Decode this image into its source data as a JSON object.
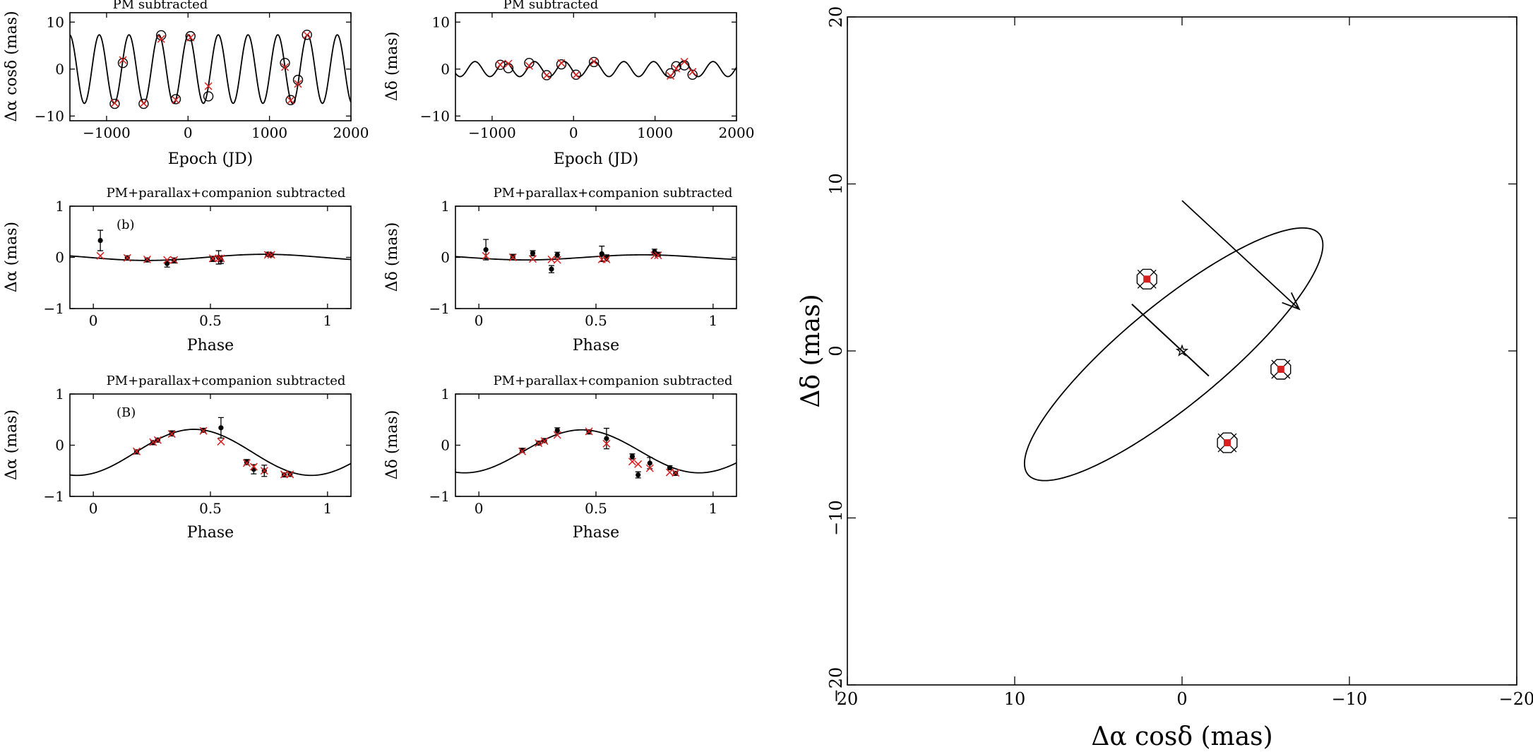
{
  "colors": {
    "axis": "#000000",
    "model_mark": "#d62020",
    "data": "#000000",
    "bg": "#ffffff"
  },
  "chart_data": [
    {
      "id": "p1",
      "type": "line",
      "title": "PM subtracted",
      "xlabel": "Epoch (JD)",
      "ylabel": "Δα cosδ (mas)",
      "xlim": [
        -1450,
        2000
      ],
      "ylim": [
        -11,
        12
      ],
      "xticks": [
        -1000,
        0,
        1000,
        2000
      ],
      "xtick_labels": [
        "−1000",
        "0",
        "1000",
        "2000"
      ],
      "yticks": [
        -10,
        0,
        10
      ],
      "ytick_labels": [
        "−10",
        "0",
        "10"
      ],
      "model": {
        "kind": "sine",
        "amp": 7.3,
        "period": 365.25,
        "phase_zero": -85,
        "offset": 0
      },
      "points": [
        {
          "x": -900,
          "y": -7.4
        },
        {
          "x": -800,
          "y": 1.3
        },
        {
          "x": -545,
          "y": -7.4
        },
        {
          "x": -330,
          "y": 7.2
        },
        {
          "x": -150,
          "y": -6.4
        },
        {
          "x": 30,
          "y": 7.0
        },
        {
          "x": 250,
          "y": -5.8
        },
        {
          "x": 1190,
          "y": 1.3
        },
        {
          "x": 1260,
          "y": -6.6
        },
        {
          "x": 1350,
          "y": -2.3
        },
        {
          "x": 1460,
          "y": 7.3
        }
      ]
    },
    {
      "id": "p2",
      "type": "line",
      "title": "PM subtracted",
      "xlabel": "Epoch (JD)",
      "ylabel": "Δδ (mas)",
      "xlim": [
        -1450,
        2000
      ],
      "ylim": [
        -11,
        12
      ],
      "xticks": [
        -1000,
        0,
        1000,
        2000
      ],
      "xtick_labels": [
        "−1000",
        "0",
        "1000",
        "2000"
      ],
      "yticks": [
        -10,
        0,
        10
      ],
      "ytick_labels": [
        "−10",
        "0",
        "10"
      ],
      "model": {
        "kind": "sine",
        "amp": 1.6,
        "period": 365.25,
        "phase_zero": 160,
        "offset": 0
      },
      "points": [
        {
          "x": -900,
          "y": 0.9
        },
        {
          "x": -800,
          "y": 0.2
        },
        {
          "x": -545,
          "y": 1.3
        },
        {
          "x": -330,
          "y": -1.3
        },
        {
          "x": -150,
          "y": 1.0
        },
        {
          "x": 30,
          "y": -1.2
        },
        {
          "x": 250,
          "y": 1.5
        },
        {
          "x": 1190,
          "y": -0.9
        },
        {
          "x": 1260,
          "y": 0.6
        },
        {
          "x": 1360,
          "y": 0.8
        },
        {
          "x": 1460,
          "y": -1.2
        }
      ]
    },
    {
      "id": "p3",
      "type": "scatter",
      "title": "PM+parallax+companion subtracted",
      "panel_label": "(b)",
      "xlabel": "Phase",
      "ylabel": "Δα (mas)",
      "xlim": [
        -0.1,
        1.1
      ],
      "ylim": [
        -1,
        1
      ],
      "xticks": [
        0,
        0.5,
        1
      ],
      "xtick_labels": [
        "0",
        "0.5",
        "1"
      ],
      "yticks": [
        -1,
        0,
        1
      ],
      "ytick_labels": [
        "−1",
        "0",
        "1"
      ],
      "model": {
        "kind": "sine",
        "amp": 0.06,
        "period": 1,
        "phase_zero": 0.48,
        "offset": 0
      },
      "points": [
        {
          "x": 0.03,
          "y": 0.33,
          "err": 0.2,
          "m": 0.03
        },
        {
          "x": 0.145,
          "y": -0.01,
          "err": 0.04,
          "m": -0.01
        },
        {
          "x": 0.23,
          "y": -0.05,
          "err": 0.04,
          "m": -0.04
        },
        {
          "x": 0.315,
          "y": -0.12,
          "err": 0.07,
          "m": -0.05
        },
        {
          "x": 0.345,
          "y": -0.06,
          "err": 0.05,
          "m": -0.05
        },
        {
          "x": 0.51,
          "y": -0.03,
          "err": 0.05,
          "m": -0.02
        },
        {
          "x": 0.535,
          "y": 0.0,
          "err": 0.13,
          "m": -0.02
        },
        {
          "x": 0.545,
          "y": -0.05,
          "err": 0.07,
          "m": -0.02
        },
        {
          "x": 0.745,
          "y": 0.06,
          "err": 0.04,
          "m": 0.05
        },
        {
          "x": 0.76,
          "y": 0.05,
          "err": 0.04,
          "m": 0.05
        }
      ]
    },
    {
      "id": "p4",
      "type": "scatter",
      "title": "PM+parallax+companion subtracted",
      "xlabel": "Phase",
      "ylabel": "Δδ (mas)",
      "xlim": [
        -0.1,
        1.1
      ],
      "ylim": [
        -1,
        1
      ],
      "xticks": [
        0,
        0.5,
        1
      ],
      "xtick_labels": [
        "0",
        "0.5",
        "1"
      ],
      "yticks": [
        -1,
        0,
        1
      ],
      "ytick_labels": [
        "−1",
        "0",
        "1"
      ],
      "model": {
        "kind": "sine",
        "amp": 0.05,
        "period": 1,
        "phase_zero": 0.45,
        "offset": 0
      },
      "points": [
        {
          "x": 0.03,
          "y": 0.15,
          "err": 0.2,
          "m": 0.03
        },
        {
          "x": 0.145,
          "y": 0.02,
          "err": 0.04,
          "m": 0.0
        },
        {
          "x": 0.23,
          "y": 0.08,
          "err": 0.05,
          "m": -0.03
        },
        {
          "x": 0.31,
          "y": -0.23,
          "err": 0.07,
          "m": -0.04
        },
        {
          "x": 0.335,
          "y": 0.05,
          "err": 0.05,
          "m": -0.05
        },
        {
          "x": 0.525,
          "y": 0.07,
          "err": 0.15,
          "m": -0.04
        },
        {
          "x": 0.545,
          "y": -0.01,
          "err": 0.06,
          "m": -0.04
        },
        {
          "x": 0.75,
          "y": 0.11,
          "err": 0.05,
          "m": 0.04
        },
        {
          "x": 0.765,
          "y": 0.06,
          "err": 0.04,
          "m": 0.04
        }
      ]
    },
    {
      "id": "p5",
      "type": "scatter",
      "title": "PM+parallax+companion subtracted",
      "panel_label": "(B)",
      "xlabel": "Phase",
      "ylabel": "Δα (mas)",
      "xlim": [
        -0.1,
        1.1
      ],
      "ylim": [
        -1,
        1
      ],
      "xticks": [
        0,
        0.5,
        1
      ],
      "xtick_labels": [
        "0",
        "0.5",
        "1"
      ],
      "yticks": [
        -1,
        0,
        1
      ],
      "ytick_labels": [
        "−1",
        "0",
        "1"
      ],
      "model": {
        "kind": "sine",
        "amp": 0.45,
        "period": 1,
        "phase_zero": 0.18,
        "offset": -0.14
      },
      "points": [
        {
          "x": 0.185,
          "y": -0.13,
          "err": 0.04,
          "m": -0.12
        },
        {
          "x": 0.255,
          "y": 0.05,
          "err": 0.04,
          "m": 0.06
        },
        {
          "x": 0.275,
          "y": 0.1,
          "err": 0.04,
          "m": 0.1
        },
        {
          "x": 0.335,
          "y": 0.23,
          "err": 0.05,
          "m": 0.22
        },
        {
          "x": 0.47,
          "y": 0.29,
          "err": 0.04,
          "m": 0.28
        },
        {
          "x": 0.545,
          "y": 0.34,
          "err": 0.2,
          "m": 0.07
        },
        {
          "x": 0.655,
          "y": -0.33,
          "err": 0.05,
          "m": -0.35
        },
        {
          "x": 0.685,
          "y": -0.47,
          "err": 0.09,
          "m": -0.42
        },
        {
          "x": 0.73,
          "y": -0.5,
          "err": 0.11,
          "m": -0.5
        },
        {
          "x": 0.815,
          "y": -0.58,
          "err": 0.04,
          "m": -0.57
        },
        {
          "x": 0.84,
          "y": -0.57,
          "err": 0.04,
          "m": -0.57
        }
      ]
    },
    {
      "id": "p6",
      "type": "scatter",
      "title": "PM+parallax+companion subtracted",
      "xlabel": "Phase",
      "ylabel": "Δδ (mas)",
      "xlim": [
        -0.1,
        1.1
      ],
      "ylim": [
        -1,
        1
      ],
      "xticks": [
        0,
        0.5,
        1
      ],
      "xtick_labels": [
        "0",
        "0.5",
        "1"
      ],
      "yticks": [
        -1,
        0,
        1
      ],
      "ytick_labels": [
        "−1",
        "0",
        "1"
      ],
      "model": {
        "kind": "sine",
        "amp": 0.42,
        "period": 1,
        "phase_zero": 0.19,
        "offset": -0.12
      },
      "points": [
        {
          "x": 0.185,
          "y": -0.1,
          "err": 0.04,
          "m": -0.12
        },
        {
          "x": 0.255,
          "y": 0.04,
          "err": 0.04,
          "m": 0.04
        },
        {
          "x": 0.28,
          "y": 0.09,
          "err": 0.04,
          "m": 0.08
        },
        {
          "x": 0.335,
          "y": 0.29,
          "err": 0.05,
          "m": 0.2
        },
        {
          "x": 0.47,
          "y": 0.26,
          "err": 0.04,
          "m": 0.27
        },
        {
          "x": 0.545,
          "y": 0.13,
          "err": 0.2,
          "m": 0.03
        },
        {
          "x": 0.655,
          "y": -0.22,
          "err": 0.05,
          "m": -0.32
        },
        {
          "x": 0.68,
          "y": -0.58,
          "err": 0.06,
          "m": -0.37
        },
        {
          "x": 0.73,
          "y": -0.35,
          "err": 0.11,
          "m": -0.45
        },
        {
          "x": 0.815,
          "y": -0.44,
          "err": 0.04,
          "m": -0.53
        },
        {
          "x": 0.84,
          "y": -0.55,
          "err": 0.04,
          "m": -0.54
        }
      ]
    },
    {
      "id": "orbit",
      "type": "line",
      "title": "",
      "xlabel": "Δα cosδ (mas)",
      "ylabel": "Δδ (mas)",
      "xlim": [
        20,
        -20
      ],
      "ylim": [
        -20,
        20
      ],
      "xticks": [
        20,
        10,
        0,
        -10,
        -20
      ],
      "xtick_labels": [
        "20",
        "10",
        "0",
        "−10",
        "−20"
      ],
      "yticks": [
        -20,
        -10,
        0,
        10,
        20
      ],
      "ytick_labels": [
        "−20",
        "−10",
        "0",
        "10",
        "20"
      ],
      "ellipse": {
        "center": [
          0.5,
          -0.2
        ],
        "semi_major": 11.3,
        "semi_minor": 3.0,
        "angle_deg": 140.4
      },
      "star": [
        0,
        0
      ],
      "orientation_line": [
        [
          3.0,
          2.8
        ],
        [
          -1.6,
          -1.5
        ]
      ],
      "motion_arrow": {
        "from": [
          0,
          9.0
        ],
        "to": [
          -7.0,
          2.5
        ]
      },
      "epochs": [
        [
          2.1,
          4.3
        ],
        [
          -5.9,
          -1.1
        ],
        [
          -2.7,
          -5.5
        ]
      ]
    }
  ]
}
